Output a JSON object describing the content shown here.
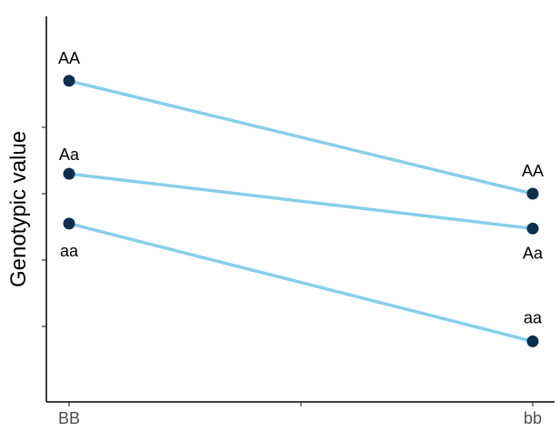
{
  "chart_data": {
    "type": "line",
    "title": "",
    "xlabel": "",
    "ylabel": "Genotypic value",
    "categories": [
      "BB",
      "bb"
    ],
    "ylim": [
      0,
      10
    ],
    "grid": false,
    "series": [
      {
        "name": "AA",
        "values": [
          9.4,
          6.0
        ],
        "point_labels": [
          "AA",
          "AA"
        ]
      },
      {
        "name": "Aa",
        "values": [
          6.6,
          4.95
        ],
        "point_labels": [
          "Aa",
          "Aa"
        ]
      },
      {
        "name": "aa",
        "values": [
          5.1,
          1.55
        ],
        "point_labels": [
          "aa",
          "aa"
        ]
      }
    ],
    "colors": {
      "line": "#87CEEB",
      "point": "#0B2F4E",
      "axis": "#000000"
    }
  }
}
